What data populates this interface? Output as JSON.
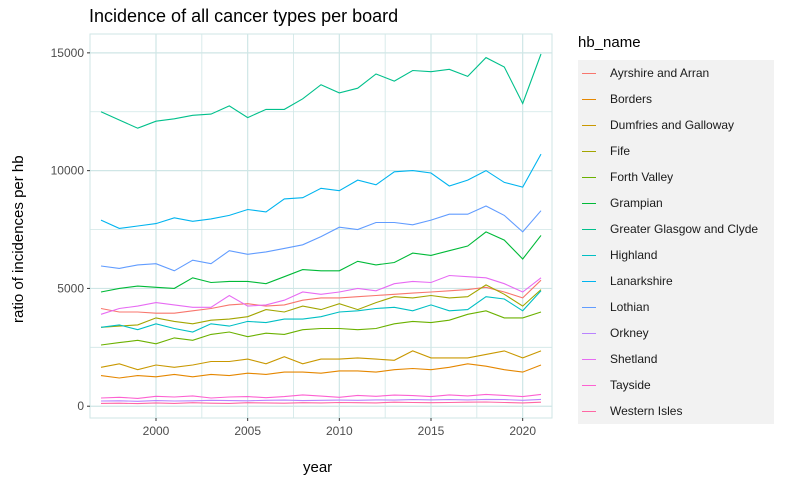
{
  "chart_data": {
    "type": "line",
    "title": "Incidence of all cancer types per board",
    "xlabel": "year",
    "ylabel": "ratio of incidences per hb",
    "legend_title": "hb_name",
    "legend_position": "right",
    "grid": true,
    "xlim": [
      1996.4,
      2021.6
    ],
    "ylim": [
      -500,
      15800
    ],
    "x_ticks": [
      2000,
      2005,
      2010,
      2015,
      2020
    ],
    "y_ticks": [
      0,
      5000,
      10000,
      15000
    ],
    "x": [
      1997,
      1998,
      1999,
      2000,
      2001,
      2002,
      2003,
      2004,
      2005,
      2006,
      2007,
      2008,
      2009,
      2010,
      2011,
      2012,
      2013,
      2014,
      2015,
      2016,
      2017,
      2018,
      2019,
      2020,
      2021
    ],
    "series": [
      {
        "name": "Ayrshire and Arran",
        "color": "#F8766D",
        "values": [
          4150,
          4000,
          4000,
          3950,
          3950,
          4050,
          4150,
          4300,
          4350,
          4250,
          4300,
          4500,
          4600,
          4600,
          4650,
          4700,
          4750,
          4800,
          4850,
          4900,
          4950,
          5050,
          4850,
          4600,
          5350
        ]
      },
      {
        "name": "Borders",
        "color": "#E58700",
        "values": [
          1300,
          1200,
          1300,
          1250,
          1350,
          1250,
          1350,
          1300,
          1400,
          1350,
          1450,
          1450,
          1400,
          1500,
          1500,
          1450,
          1550,
          1600,
          1550,
          1650,
          1800,
          1700,
          1550,
          1450,
          1750
        ]
      },
      {
        "name": "Dumfries and Galloway",
        "color": "#C99800",
        "values": [
          1650,
          1800,
          1550,
          1750,
          1650,
          1750,
          1900,
          1900,
          2000,
          1800,
          2100,
          1800,
          2000,
          2000,
          2050,
          2000,
          1950,
          2350,
          2050,
          2050,
          2050,
          2200,
          2350,
          2050,
          2350
        ]
      },
      {
        "name": "Fife",
        "color": "#A3A500",
        "values": [
          3350,
          3400,
          3450,
          3750,
          3600,
          3500,
          3650,
          3700,
          3800,
          4100,
          4000,
          4250,
          4100,
          4350,
          4100,
          4400,
          4650,
          4600,
          4700,
          4600,
          4650,
          5150,
          4750,
          4250,
          4950
        ]
      },
      {
        "name": "Forth Valley",
        "color": "#6BB100",
        "values": [
          2600,
          2700,
          2800,
          2650,
          2900,
          2800,
          3050,
          3150,
          2950,
          3100,
          3050,
          3250,
          3300,
          3300,
          3250,
          3300,
          3500,
          3600,
          3550,
          3650,
          3900,
          4050,
          3750,
          3750,
          4000
        ]
      },
      {
        "name": "Grampian",
        "color": "#00BA38",
        "values": [
          4850,
          5000,
          5100,
          5050,
          5000,
          5450,
          5250,
          5300,
          5300,
          5200,
          5500,
          5800,
          5750,
          5750,
          6150,
          6000,
          6100,
          6500,
          6400,
          6600,
          6800,
          7400,
          7050,
          6250,
          7250
        ]
      },
      {
        "name": "Greater Glasgow and Clyde",
        "color": "#00C08B",
        "values": [
          12500,
          12150,
          11800,
          12100,
          12200,
          12350,
          12400,
          12750,
          12250,
          12600,
          12600,
          13050,
          13650,
          13300,
          13500,
          14100,
          13800,
          14250,
          14200,
          14300,
          14000,
          14800,
          14400,
          12850,
          14950
        ]
      },
      {
        "name": "Highland",
        "color": "#00BFC4",
        "values": [
          3350,
          3450,
          3250,
          3500,
          3300,
          3150,
          3500,
          3400,
          3600,
          3550,
          3700,
          3700,
          3800,
          4000,
          4050,
          4150,
          4200,
          4050,
          4300,
          4050,
          4100,
          4650,
          4550,
          4050,
          4900
        ]
      },
      {
        "name": "Lanarkshire",
        "color": "#00B4EF",
        "values": [
          7900,
          7550,
          7650,
          7750,
          8000,
          7850,
          7950,
          8100,
          8350,
          8250,
          8800,
          8850,
          9250,
          9150,
          9600,
          9400,
          9950,
          10000,
          9900,
          9350,
          9600,
          10000,
          9500,
          9300,
          10700
        ]
      },
      {
        "name": "Lothian",
        "color": "#619CFF",
        "values": [
          5950,
          5850,
          6000,
          6050,
          5750,
          6200,
          6050,
          6600,
          6450,
          6550,
          6700,
          6850,
          7200,
          7600,
          7500,
          7800,
          7800,
          7700,
          7900,
          8150,
          8150,
          8500,
          8100,
          7400,
          8300
        ]
      },
      {
        "name": "Orkney",
        "color": "#B983FF",
        "values": [
          220,
          230,
          210,
          240,
          220,
          230,
          250,
          240,
          230,
          250,
          260,
          240,
          250,
          260,
          250,
          270,
          260,
          280,
          270,
          280,
          270,
          290,
          280,
          250,
          290
        ]
      },
      {
        "name": "Shetland",
        "color": "#E76BF3",
        "values": [
          3900,
          4150,
          4250,
          4400,
          4300,
          4200,
          4200,
          4700,
          4250,
          4300,
          4500,
          4850,
          4750,
          4850,
          5000,
          4900,
          5200,
          5300,
          5250,
          5550,
          5500,
          5450,
          5200,
          4850,
          5450
        ]
      },
      {
        "name": "Tayside",
        "color": "#FD61D1",
        "values": [
          350,
          380,
          330,
          420,
          390,
          440,
          350,
          390,
          410,
          360,
          410,
          480,
          430,
          380,
          460,
          420,
          470,
          450,
          410,
          480,
          440,
          500,
          460,
          410,
          500
        ]
      },
      {
        "name": "Western Isles",
        "color": "#FF67A4",
        "values": [
          120,
          130,
          110,
          140,
          120,
          150,
          130,
          120,
          150,
          140,
          130,
          150,
          140,
          160,
          150,
          140,
          170,
          160,
          150,
          160,
          170,
          180,
          160,
          140,
          170
        ]
      }
    ]
  }
}
